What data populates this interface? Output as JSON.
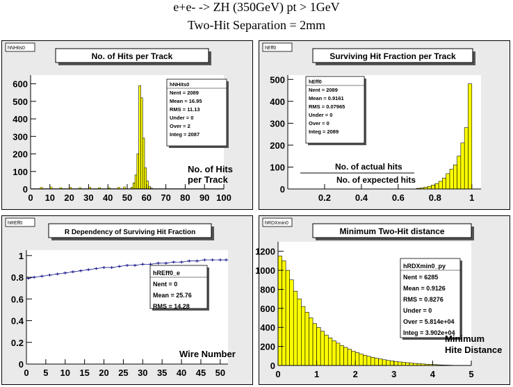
{
  "canvas_title_line1": "e+e- -> ZH (350GeV)     pt > 1GeV",
  "canvas_title_line2": "Two-Hit Separation = 2mm",
  "colors": {
    "pad_bg": "#eaeaea",
    "frame_bg": "#ffffff",
    "fill": "#ffff00",
    "line": "#000000",
    "profile": "#000080",
    "shadow": "#555555"
  },
  "chart_data": [
    {
      "type": "bar",
      "histogram": true,
      "name_tag": "hNHits0",
      "title": "No. of Hits per Track",
      "annotation": [
        "No. of Hits",
        "per Track"
      ],
      "xlim": [
        0,
        100
      ],
      "ylim": [
        0,
        650
      ],
      "xticks": [
        0,
        10,
        20,
        30,
        40,
        50,
        60,
        70,
        80,
        90,
        100
      ],
      "yticks": [
        0,
        100,
        200,
        300,
        400,
        500,
        600
      ],
      "bins": [
        {
          "x": 52,
          "w": 1,
          "y": 10
        },
        {
          "x": 53,
          "w": 1,
          "y": 35
        },
        {
          "x": 54,
          "w": 1,
          "y": 80
        },
        {
          "x": 55,
          "w": 1,
          "y": 200
        },
        {
          "x": 56,
          "w": 1,
          "y": 590
        },
        {
          "x": 57,
          "w": 1,
          "y": 520
        },
        {
          "x": 58,
          "w": 1,
          "y": 290
        },
        {
          "x": 59,
          "w": 1,
          "y": 120
        },
        {
          "x": 60,
          "w": 1,
          "y": 45
        },
        {
          "x": 61,
          "w": 1,
          "y": 15
        },
        {
          "x": 62,
          "w": 1,
          "y": 5
        }
      ],
      "background_counts": [
        {
          "x": 5,
          "y": 10
        },
        {
          "x": 10,
          "y": 12
        },
        {
          "x": 15,
          "y": 8
        },
        {
          "x": 20,
          "y": 10
        },
        {
          "x": 25,
          "y": 8
        },
        {
          "x": 30,
          "y": 10
        },
        {
          "x": 35,
          "y": 8
        },
        {
          "x": 40,
          "y": 8
        },
        {
          "x": 45,
          "y": 10
        },
        {
          "x": 48,
          "y": 12
        }
      ],
      "stats": {
        "name": "hNHits0",
        "rows": [
          "Nent = 2089",
          "Mean  =  16.95",
          "RMS   =  11.13",
          "Under =      0",
          "Over  =      2",
          "Integ =  2087"
        ]
      }
    },
    {
      "type": "bar",
      "histogram": true,
      "name_tag": "hEff0",
      "title": "Surviving Hit Fraction per Track",
      "annotation": [
        "No. of actual hits",
        "No. of expected hits"
      ],
      "xlim": [
        0,
        1.05
      ],
      "ylim": [
        0,
        520
      ],
      "xticks": [
        0.2,
        0.4,
        0.6,
        0.8,
        1
      ],
      "yticks": [
        0,
        100,
        200,
        300,
        400,
        500
      ],
      "bins": [
        {
          "x": 0.7,
          "w": 0.02,
          "y": 3
        },
        {
          "x": 0.72,
          "w": 0.02,
          "y": 5
        },
        {
          "x": 0.74,
          "w": 0.02,
          "y": 8
        },
        {
          "x": 0.76,
          "w": 0.02,
          "y": 12
        },
        {
          "x": 0.78,
          "w": 0.02,
          "y": 18
        },
        {
          "x": 0.8,
          "w": 0.02,
          "y": 25
        },
        {
          "x": 0.82,
          "w": 0.02,
          "y": 35
        },
        {
          "x": 0.84,
          "w": 0.02,
          "y": 50
        },
        {
          "x": 0.86,
          "w": 0.02,
          "y": 70
        },
        {
          "x": 0.88,
          "w": 0.02,
          "y": 90
        },
        {
          "x": 0.9,
          "w": 0.02,
          "y": 110
        },
        {
          "x": 0.92,
          "w": 0.02,
          "y": 150
        },
        {
          "x": 0.94,
          "w": 0.02,
          "y": 210
        },
        {
          "x": 0.96,
          "w": 0.02,
          "y": 280
        },
        {
          "x": 0.98,
          "w": 0.02,
          "y": 480
        }
      ],
      "stats": {
        "name": "hEff0",
        "rows": [
          "Nent = 2089",
          "Mean  =  0.9161",
          "RMS   =  0.07965",
          "Under =      0",
          "Over  =      0",
          "Integ =  2089"
        ]
      }
    },
    {
      "type": "scatter",
      "profile": true,
      "name_tag": "hREff0",
      "title": "R Dependency of Surviving Hit Fraction",
      "annotation": [
        "Wire Number"
      ],
      "xlim": [
        0,
        52
      ],
      "ylim": [
        0,
        1.05
      ],
      "xticks": [
        0,
        5,
        10,
        15,
        20,
        25,
        30,
        35,
        40,
        45,
        50
      ],
      "yticks": [
        0,
        0.2,
        0.4,
        0.6,
        0.8,
        1
      ],
      "points": {
        "x": [
          0.5,
          2,
          4,
          6,
          8,
          10,
          12,
          14,
          16,
          18,
          20,
          22,
          24,
          26,
          28,
          30,
          32,
          34,
          36,
          38,
          40,
          42,
          44,
          46,
          48,
          50,
          51.5
        ],
        "y": [
          0.79,
          0.8,
          0.81,
          0.82,
          0.83,
          0.84,
          0.85,
          0.86,
          0.87,
          0.88,
          0.89,
          0.89,
          0.9,
          0.91,
          0.91,
          0.92,
          0.92,
          0.93,
          0.93,
          0.94,
          0.94,
          0.95,
          0.95,
          0.96,
          0.96,
          0.96,
          0.96
        ]
      },
      "stats": {
        "name": "hREff0_e",
        "rows": [
          "Nent = 0",
          "Mean  =  25.76",
          "RMS   =  14.28"
        ]
      }
    },
    {
      "type": "bar",
      "histogram": true,
      "name_tag": "hRDXmin0",
      "title": "Minimum Two-Hit distance",
      "annotation": [
        "Minimum",
        "Hite Distance"
      ],
      "xlim": [
        0,
        5
      ],
      "ylim": [
        0,
        1300
      ],
      "xticks": [
        0,
        1,
        2,
        3,
        4,
        5
      ],
      "yticks": [
        0,
        200,
        400,
        600,
        800,
        1000,
        1200
      ],
      "bins": [
        {
          "x": 0.0,
          "w": 0.1,
          "y": 1150
        },
        {
          "x": 0.1,
          "w": 0.1,
          "y": 1100
        },
        {
          "x": 0.2,
          "w": 0.1,
          "y": 1000
        },
        {
          "x": 0.3,
          "w": 0.1,
          "y": 900
        },
        {
          "x": 0.4,
          "w": 0.1,
          "y": 780
        },
        {
          "x": 0.5,
          "w": 0.1,
          "y": 700
        },
        {
          "x": 0.6,
          "w": 0.1,
          "y": 620
        },
        {
          "x": 0.7,
          "w": 0.1,
          "y": 560
        },
        {
          "x": 0.8,
          "w": 0.1,
          "y": 500
        },
        {
          "x": 0.9,
          "w": 0.1,
          "y": 440
        },
        {
          "x": 1.0,
          "w": 0.1,
          "y": 400
        },
        {
          "x": 1.1,
          "w": 0.1,
          "y": 360
        },
        {
          "x": 1.2,
          "w": 0.1,
          "y": 320
        },
        {
          "x": 1.3,
          "w": 0.1,
          "y": 290
        },
        {
          "x": 1.4,
          "w": 0.1,
          "y": 260
        },
        {
          "x": 1.5,
          "w": 0.1,
          "y": 235
        },
        {
          "x": 1.6,
          "w": 0.1,
          "y": 210
        },
        {
          "x": 1.7,
          "w": 0.1,
          "y": 190
        },
        {
          "x": 1.8,
          "w": 0.1,
          "y": 170
        },
        {
          "x": 1.9,
          "w": 0.1,
          "y": 150
        },
        {
          "x": 2.0,
          "w": 0.1,
          "y": 135
        },
        {
          "x": 2.1,
          "w": 0.1,
          "y": 120
        },
        {
          "x": 2.2,
          "w": 0.1,
          "y": 108
        },
        {
          "x": 2.3,
          "w": 0.1,
          "y": 96
        },
        {
          "x": 2.4,
          "w": 0.1,
          "y": 86
        },
        {
          "x": 2.5,
          "w": 0.1,
          "y": 76
        },
        {
          "x": 2.6,
          "w": 0.1,
          "y": 68
        },
        {
          "x": 2.7,
          "w": 0.1,
          "y": 60
        },
        {
          "x": 2.8,
          "w": 0.1,
          "y": 53
        },
        {
          "x": 2.9,
          "w": 0.1,
          "y": 47
        },
        {
          "x": 3.0,
          "w": 0.1,
          "y": 42
        },
        {
          "x": 3.1,
          "w": 0.1,
          "y": 37
        },
        {
          "x": 3.2,
          "w": 0.1,
          "y": 33
        },
        {
          "x": 3.3,
          "w": 0.1,
          "y": 29
        },
        {
          "x": 3.4,
          "w": 0.1,
          "y": 25
        },
        {
          "x": 3.5,
          "w": 0.1,
          "y": 22
        },
        {
          "x": 3.6,
          "w": 0.1,
          "y": 19
        },
        {
          "x": 3.7,
          "w": 0.1,
          "y": 16
        },
        {
          "x": 3.8,
          "w": 0.1,
          "y": 13
        },
        {
          "x": 3.9,
          "w": 0.1,
          "y": 11
        },
        {
          "x": 4.0,
          "w": 0.1,
          "y": 9
        },
        {
          "x": 4.1,
          "w": 0.1,
          "y": 7
        },
        {
          "x": 4.2,
          "w": 0.1,
          "y": 5
        },
        {
          "x": 4.3,
          "w": 0.1,
          "y": 4
        },
        {
          "x": 4.4,
          "w": 0.1,
          "y": 3
        }
      ],
      "stats": {
        "name": "hRDXmin0_py",
        "rows": [
          "Nent = 6285",
          "Mean  =  0.9126",
          "RMS   =  0.8276",
          "Under =      0",
          "Over  =  5.814e+04",
          "Integ =  3.902e+04"
        ]
      }
    }
  ]
}
